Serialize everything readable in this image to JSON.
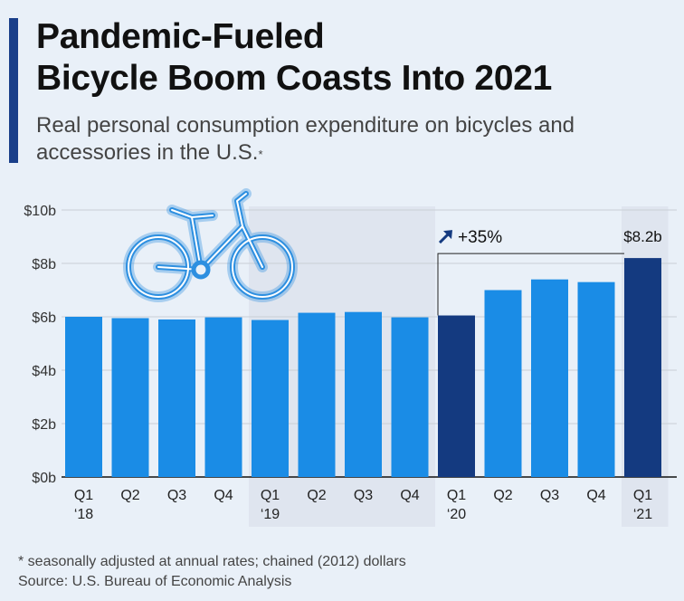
{
  "title_line1": "Pandemic-Fueled",
  "title_line2": "Bicycle Boom Coasts Into 2021",
  "subtitle": "Real personal consumption expenditure on bicycles and accessories in the U.S.",
  "subtitle_mark": "*",
  "footnote": "* seasonally adjusted at annual rates; chained (2012) dollars",
  "source": "Source: U.S. Bureau of Economic Analysis",
  "icon": "bicycle-icon",
  "colors": {
    "bar": "#1a8ce6",
    "bar_highlight": "#143a80",
    "axis": "#111111",
    "grid": "#c9ced6",
    "band": "#dfe5ef"
  },
  "chart_data": {
    "type": "bar",
    "categories": [
      "Q1 '18",
      "Q2",
      "Q3",
      "Q4",
      "Q1 '19",
      "Q2",
      "Q3",
      "Q4",
      "Q1 '20",
      "Q2",
      "Q3",
      "Q4",
      "Q1 '21"
    ],
    "category_lines": [
      [
        "Q1",
        "‘18"
      ],
      [
        "Q2"
      ],
      [
        "Q3"
      ],
      [
        "Q4"
      ],
      [
        "Q1",
        "‘19"
      ],
      [
        "Q2"
      ],
      [
        "Q3"
      ],
      [
        "Q4"
      ],
      [
        "Q1",
        "‘20"
      ],
      [
        "Q2"
      ],
      [
        "Q3"
      ],
      [
        "Q4"
      ],
      [
        "Q1",
        "‘21"
      ]
    ],
    "values": [
      6.0,
      5.95,
      5.9,
      5.98,
      5.88,
      6.15,
      6.18,
      5.98,
      6.05,
      7.0,
      7.4,
      7.3,
      8.2
    ],
    "highlight": [
      8,
      12
    ],
    "ylim": [
      0,
      10
    ],
    "yticks": [
      "$0b",
      "$2b",
      "$4b",
      "$6b",
      "$8b",
      "$10b"
    ],
    "grid": true,
    "annotations": {
      "growth": "+35%",
      "last_value": "$8.2b"
    }
  }
}
